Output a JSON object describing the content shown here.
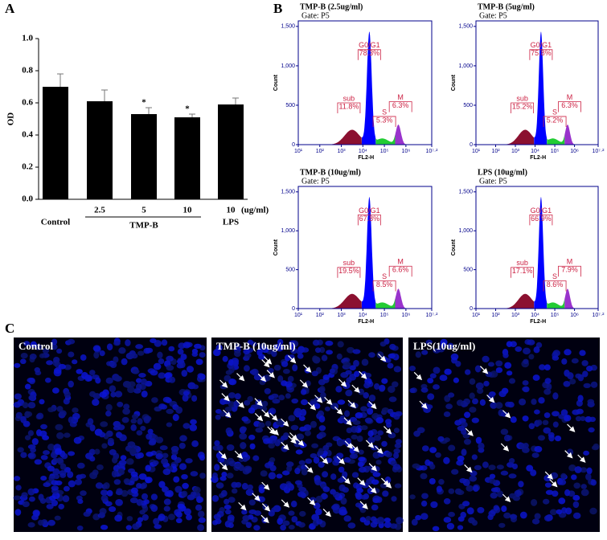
{
  "chart_data": [
    {
      "type": "bar",
      "panel_label": "A",
      "ylabel": "OD",
      "categories": [
        "Control",
        "2.5",
        "5",
        "10",
        "10"
      ],
      "values": [
        0.7,
        0.61,
        0.53,
        0.51,
        0.59
      ],
      "errors": [
        0.08,
        0.07,
        0.04,
        0.02,
        0.04
      ],
      "annotations": [
        "*",
        "*"
      ],
      "unit": "(ug/ml)",
      "groups": [
        "TMP-B",
        "LPS"
      ],
      "color": "#000000",
      "ylim": [
        0,
        1
      ],
      "yticks": [
        {
          "value": 0,
          "label": "0.0"
        },
        0.2,
        0.4,
        0.6,
        0.8,
        {
          "value": 1,
          "label": "1.0"
        }
      ]
    },
    {
      "type": "flow",
      "panel_label": "B",
      "title": "TMP-B (2.5ug/ml)",
      "gate": "Gate: P5",
      "ylabel": "Count",
      "xlabel": "FL2-H",
      "gates": [
        "sub",
        "G0/G1",
        "S",
        "M"
      ],
      "values": [
        11.8,
        78.3,
        5.3,
        6.3
      ],
      "value_labels": [
        "11.8%",
        "78.3%",
        "5.3%",
        "6.3%"
      ],
      "ylim": [
        0,
        1570
      ],
      "yticks": [
        0,
        500,
        {
          "value": 1000,
          "label": "1,000"
        },
        {
          "value": 1500,
          "label": "1,500"
        }
      ],
      "xlim": [
        1,
        7.2
      ],
      "xticks": [
        {
          "value": 1,
          "label": "10¹"
        },
        {
          "value": 2,
          "label": "10²"
        },
        {
          "value": 3,
          "label": "10³"
        },
        {
          "value": 4,
          "label": "10⁴"
        },
        {
          "value": 5,
          "label": "10⁵"
        },
        {
          "value": 6,
          "label": "10⁶"
        },
        {
          "value": 7.2,
          "label": "10⁷·²"
        }
      ]
    },
    {
      "type": "flow",
      "title": "TMP-B (5ug/ml)",
      "gate": "Gate: P5",
      "ylabel": "Count",
      "xlabel": "FL2-H",
      "gates": [
        "sub",
        "G0/G1",
        "S",
        "M"
      ],
      "values": [
        15.2,
        75.8,
        5.2,
        6.3
      ],
      "value_labels": [
        "15.2%",
        "75.8%",
        "5.2%",
        "6.3%"
      ],
      "ylim": [
        0,
        1570
      ],
      "yticks": [
        0,
        500,
        {
          "value": 1000,
          "label": "1,000"
        },
        {
          "value": 1500,
          "label": "1,500"
        }
      ],
      "xlim": [
        1,
        7.2
      ],
      "xticks": [
        {
          "value": 1,
          "label": "10¹"
        },
        {
          "value": 2,
          "label": "10²"
        },
        {
          "value": 3,
          "label": "10³"
        },
        {
          "value": 4,
          "label": "10⁴"
        },
        {
          "value": 5,
          "label": "10⁵"
        },
        {
          "value": 6,
          "label": "10⁶"
        },
        {
          "value": 7.2,
          "label": "10⁷·²"
        }
      ]
    },
    {
      "type": "flow",
      "title": "TMP-B (10ug/ml)",
      "gate": "Gate: P5",
      "ylabel": "Count",
      "xlabel": "FL2-H",
      "gates": [
        "sub",
        "G0/G1",
        "S",
        "M"
      ],
      "values": [
        19.5,
        67.8,
        8.5,
        6.6
      ],
      "value_labels": [
        "19.5%",
        "67.8%",
        "8.5%",
        "6.6%"
      ],
      "ylim": [
        0,
        1570
      ],
      "yticks": [
        0,
        500,
        {
          "value": 1000,
          "label": "1,000"
        },
        {
          "value": 1500,
          "label": "1,500"
        }
      ],
      "xlim": [
        1,
        7.2
      ],
      "xticks": [
        {
          "value": 1,
          "label": "10¹"
        },
        {
          "value": 2,
          "label": "10²"
        },
        {
          "value": 3,
          "label": "10³"
        },
        {
          "value": 4,
          "label": "10⁴"
        },
        {
          "value": 5,
          "label": "10⁵"
        },
        {
          "value": 6,
          "label": "10⁶"
        },
        {
          "value": 7.2,
          "label": "10⁷·²"
        }
      ]
    },
    {
      "type": "flow",
      "title": "LPS (10ug/ml)",
      "gate": "Gate: P5",
      "ylabel": "Count",
      "xlabel": "FL2-H",
      "gates": [
        "sub",
        "G0/G1",
        "S",
        "M"
      ],
      "values": [
        17.1,
        66.9,
        8.6,
        7.9
      ],
      "value_labels": [
        "17.1%",
        "66.9%",
        "8.6%",
        "7.9%"
      ],
      "ylim": [
        0,
        1570
      ],
      "yticks": [
        0,
        500,
        {
          "value": 1000,
          "label": "1,000"
        },
        {
          "value": 1500,
          "label": "1,500"
        }
      ],
      "xlim": [
        1,
        7.2
      ],
      "xticks": [
        {
          "value": 1,
          "label": "10¹"
        },
        {
          "value": 2,
          "label": "10²"
        },
        {
          "value": 3,
          "label": "10³"
        },
        {
          "value": 4,
          "label": "10⁴"
        },
        {
          "value": 5,
          "label": "10⁵"
        },
        {
          "value": 6,
          "label": "10⁶"
        },
        {
          "value": 7.2,
          "label": "10⁷·²"
        }
      ]
    }
  ],
  "figure_c": {
    "panel_label": "C",
    "images": [
      "Control",
      "TMP-B (10ug/ml)",
      "LPS(10ug/ml)"
    ]
  }
}
